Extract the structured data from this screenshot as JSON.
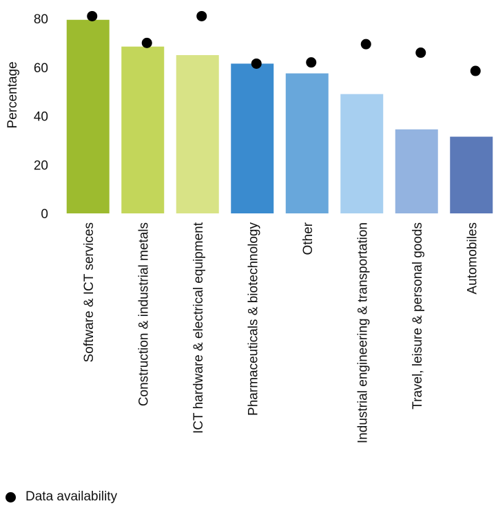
{
  "chart_data": {
    "type": "bar",
    "title": "",
    "xlabel": "",
    "ylabel": "Percentage",
    "ylim": [
      0,
      80
    ],
    "yticks": [
      0,
      20,
      40,
      60,
      80
    ],
    "grid": false,
    "categories": [
      "Software & ICT services",
      "Construction & industrial metals",
      "ICT hardware & electrical equipment",
      "Pharmaceuticals & biotechnology",
      "Other",
      "Industrial engineering & transportation",
      "Travel, leisure & personal goods",
      "Automobiles"
    ],
    "series": [
      {
        "type": "bar",
        "values": [
          79.5,
          68.5,
          65,
          61.5,
          57.5,
          49,
          34.5,
          31.5
        ],
        "colors": [
          "#9dbb2f",
          "#c3d65a",
          "#d8e386",
          "#3a8bcf",
          "#68a7db",
          "#a7cff0",
          "#93b3e0",
          "#5b79b8"
        ]
      },
      {
        "name": "Data availability",
        "type": "scatter",
        "values": [
          81,
          70,
          81,
          61.5,
          62,
          69.5,
          66,
          58.5
        ],
        "color": "#000000"
      }
    ],
    "legend": {
      "position": "bottom-left"
    }
  }
}
